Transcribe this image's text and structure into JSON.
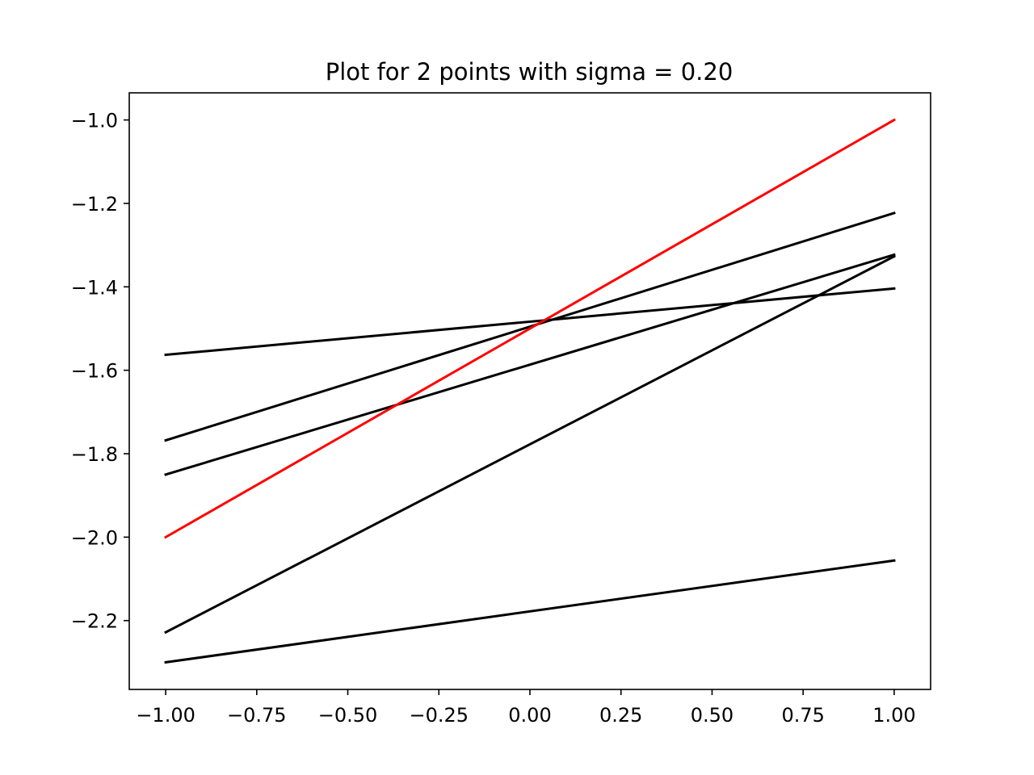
{
  "chart_data": {
    "type": "line",
    "title": "Plot for 2 points with sigma = 0.20",
    "xlabel": "",
    "ylabel": "",
    "xlim": [
      -1.1,
      1.1
    ],
    "ylim": [
      -2.365,
      -0.935
    ],
    "grid": false,
    "x_ticks": [
      -1.0,
      -0.75,
      -0.5,
      -0.25,
      0.0,
      0.25,
      0.5,
      0.75,
      1.0
    ],
    "x_tick_labels": [
      "−1.00",
      "−0.75",
      "−0.50",
      "−0.25",
      "0.00",
      "0.25",
      "0.50",
      "0.75",
      "1.00"
    ],
    "y_ticks": [
      -2.2,
      -2.0,
      -1.8,
      -1.6,
      -1.4,
      -1.2,
      -1.0
    ],
    "y_tick_labels": [
      "−2.2",
      "−2.0",
      "−1.8",
      "−1.6",
      "−1.4",
      "−1.2",
      "−1.0"
    ],
    "series": [
      {
        "color": "#000000",
        "x": [
          -1.0,
          1.0
        ],
        "y": [
          -1.563,
          -1.404
        ]
      },
      {
        "color": "#000000",
        "x": [
          -1.0,
          1.0
        ],
        "y": [
          -1.768,
          -1.223
        ]
      },
      {
        "color": "#000000",
        "x": [
          -1.0,
          1.0
        ],
        "y": [
          -1.85,
          -1.323
        ]
      },
      {
        "color": "#000000",
        "x": [
          -1.0,
          1.0
        ],
        "y": [
          -2.228,
          -1.327
        ]
      },
      {
        "color": "#000000",
        "x": [
          -1.0,
          1.0
        ],
        "y": [
          -2.3,
          -2.056
        ]
      },
      {
        "color": "#ff0000",
        "x": [
          -1.0,
          1.0
        ],
        "y": [
          -2.0,
          -1.0
        ]
      }
    ]
  }
}
